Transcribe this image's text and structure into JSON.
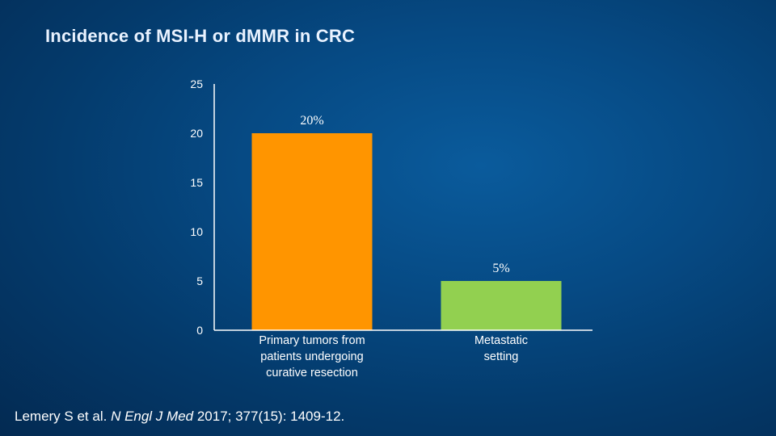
{
  "slide": {
    "title": "Incidence of MSI-H or dMMR in CRC",
    "citation": {
      "authors": "Lemery S et al. ",
      "journal": "N Engl J Med",
      "details": " 2017; 377(15): 1409-12."
    }
  },
  "colors": {
    "background": "#064a84",
    "axis": "#ffffff"
  },
  "chart_data": {
    "type": "bar",
    "title": "",
    "xlabel": "",
    "ylabel": "",
    "ylim": [
      0,
      25
    ],
    "yticks": [
      0,
      5,
      10,
      15,
      20,
      25
    ],
    "grid": false,
    "legend": "none",
    "categories": [
      [
        "Primary tumors from",
        "patients undergoing",
        "curative resection"
      ],
      [
        "Metastatic",
        "setting"
      ]
    ],
    "values": [
      20,
      5
    ],
    "data_labels": [
      "20%",
      "5%"
    ],
    "bar_colors": [
      "#ff9500",
      "#92d050"
    ]
  }
}
